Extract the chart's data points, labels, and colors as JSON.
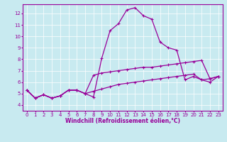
{
  "title": "",
  "xlabel": "Windchill (Refroidissement éolien,°C)",
  "bg_color": "#c8eaf0",
  "line_color": "#990099",
  "grid_color": "#ffffff",
  "xlim": [
    -0.5,
    23.5
  ],
  "ylim": [
    3.5,
    12.8
  ],
  "yticks": [
    4,
    5,
    6,
    7,
    8,
    9,
    10,
    11,
    12
  ],
  "xticks": [
    0,
    1,
    2,
    3,
    4,
    5,
    6,
    7,
    8,
    9,
    10,
    11,
    12,
    13,
    14,
    15,
    16,
    17,
    18,
    19,
    20,
    21,
    22,
    23
  ],
  "x": [
    0,
    1,
    2,
    3,
    4,
    5,
    6,
    7,
    8,
    9,
    10,
    11,
    12,
    13,
    14,
    15,
    16,
    17,
    18,
    19,
    20,
    21,
    22,
    23
  ],
  "y_main": [
    5.3,
    4.6,
    4.9,
    4.6,
    4.8,
    5.3,
    5.3,
    5.0,
    4.7,
    8.1,
    10.5,
    11.1,
    12.3,
    12.5,
    11.8,
    11.5,
    9.5,
    9.0,
    8.8,
    6.2,
    6.5,
    6.2,
    6.0,
    6.5
  ],
  "y_line2": [
    5.3,
    4.6,
    4.9,
    4.6,
    4.8,
    5.3,
    5.3,
    5.0,
    6.6,
    6.8,
    6.9,
    7.0,
    7.1,
    7.2,
    7.3,
    7.3,
    7.4,
    7.5,
    7.6,
    7.7,
    7.8,
    7.9,
    6.3,
    6.5
  ],
  "y_line3": [
    5.3,
    4.6,
    4.9,
    4.6,
    4.8,
    5.3,
    5.3,
    5.0,
    5.2,
    5.4,
    5.6,
    5.8,
    5.9,
    6.0,
    6.1,
    6.2,
    6.3,
    6.4,
    6.5,
    6.6,
    6.7,
    6.2,
    6.3,
    6.5
  ],
  "xlabel_fontsize": 5.5,
  "tick_fontsize": 5.0,
  "linewidth": 0.9,
  "markersize": 2.5
}
